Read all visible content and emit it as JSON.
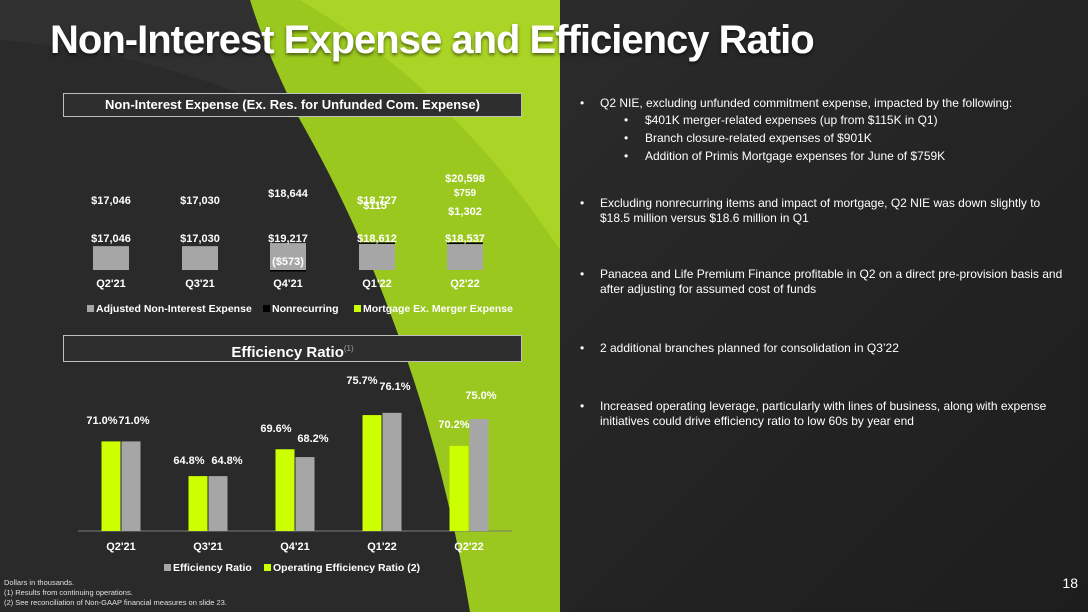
{
  "page": {
    "title": "Non-Interest Expense and Efficiency Ratio",
    "page_number": "18"
  },
  "colors": {
    "accent_green": "#9bc81e",
    "bright_green": "#ccff00",
    "gray_bar": "#a6a6a6",
    "black": "#000000",
    "background": "#262626"
  },
  "headers": {
    "nie": "Non-Interest Expense (Ex. Res. for Unfunded Com. Expense)",
    "efficiency": "Efficiency Ratio",
    "efficiency_sup": "(1)"
  },
  "bullets": [
    {
      "text": "Q2 NIE, excluding unfunded commitment expense, impacted by the following:",
      "sub": [
        "$401K merger-related expenses (up from $115K in Q1)",
        "Branch closure-related expenses of $901K",
        "Addition of Primis Mortgage expenses for June of $759K"
      ]
    },
    {
      "text": "Excluding nonrecurring items and impact of mortgage, Q2 NIE was down slightly to $18.5 million versus $18.6 million in Q1"
    },
    {
      "text": "Panacea and Life Premium Finance profitable in Q2 on a direct pre-provision basis and after adjusting for assumed cost of funds"
    },
    {
      "text": "2 additional branches planned for consolidation in Q3’22"
    },
    {
      "text": "Increased operating leverage, particularly with lines of business, along with expense initiatives could drive efficiency ratio to low 60s by year end"
    }
  ],
  "footnotes": [
    "Dollars in thousands.",
    "(1) Results from continuing operations.",
    "(2) See reconciliation of Non-GAAP financial measures on slide 23."
  ],
  "chart_data": [
    {
      "type": "bar",
      "stacked": true,
      "title": "Non-Interest Expense (Ex. Res. for Unfunded Com. Expense)",
      "categories": [
        "Q2'21",
        "Q3'21",
        "Q4'21",
        "Q1'22",
        "Q2'22"
      ],
      "series": [
        {
          "name": "Adjusted Non-Interest Expense",
          "color": "#a6a6a6",
          "values": [
            17046,
            17030,
            19217,
            18612,
            18537
          ],
          "labels": [
            "$17,046",
            "$17,030",
            "$19,217",
            "$18,612",
            "$18,537"
          ]
        },
        {
          "name": "Nonrecurring",
          "color": "#000000",
          "values": [
            0,
            0,
            -573,
            115,
            1302
          ],
          "labels": [
            "",
            "",
            "($573)",
            "$115",
            "$1,302"
          ]
        },
        {
          "name": "Mortgage Ex. Merger Expense",
          "color": "#ccff00",
          "values": [
            0,
            0,
            0,
            0,
            759
          ],
          "labels": [
            "",
            "",
            "",
            "",
            "$759"
          ]
        }
      ],
      "totals": [
        17046,
        17030,
        18644,
        18727,
        20598
      ],
      "total_labels": [
        "$17,046",
        "$17,030",
        "$18,644",
        "$18,727",
        "$20,598"
      ],
      "ylim": [
        -1200,
        21500
      ],
      "legend": "bottom"
    },
    {
      "type": "bar",
      "title": "Efficiency Ratio",
      "categories": [
        "Q2'21",
        "Q3'21",
        "Q4'21",
        "Q1'22",
        "Q2'22"
      ],
      "series": [
        {
          "name": "Efficiency Ratio",
          "color": "#a6a6a6",
          "values": [
            71.0,
            64.8,
            68.2,
            76.1,
            75.0
          ],
          "labels": [
            "71.0%",
            "64.8%",
            "68.2%",
            "76.1%",
            "75.0%"
          ]
        },
        {
          "name": "Operating Efficiency Ratio (2)",
          "color": "#ccff00",
          "values": [
            71.0,
            64.8,
            69.6,
            75.7,
            70.2
          ],
          "labels": [
            "71.0%",
            "64.8%",
            "69.6%",
            "75.7%",
            "70.2%"
          ]
        }
      ],
      "ylim": [
        55,
        78
      ],
      "legend": "bottom"
    }
  ]
}
